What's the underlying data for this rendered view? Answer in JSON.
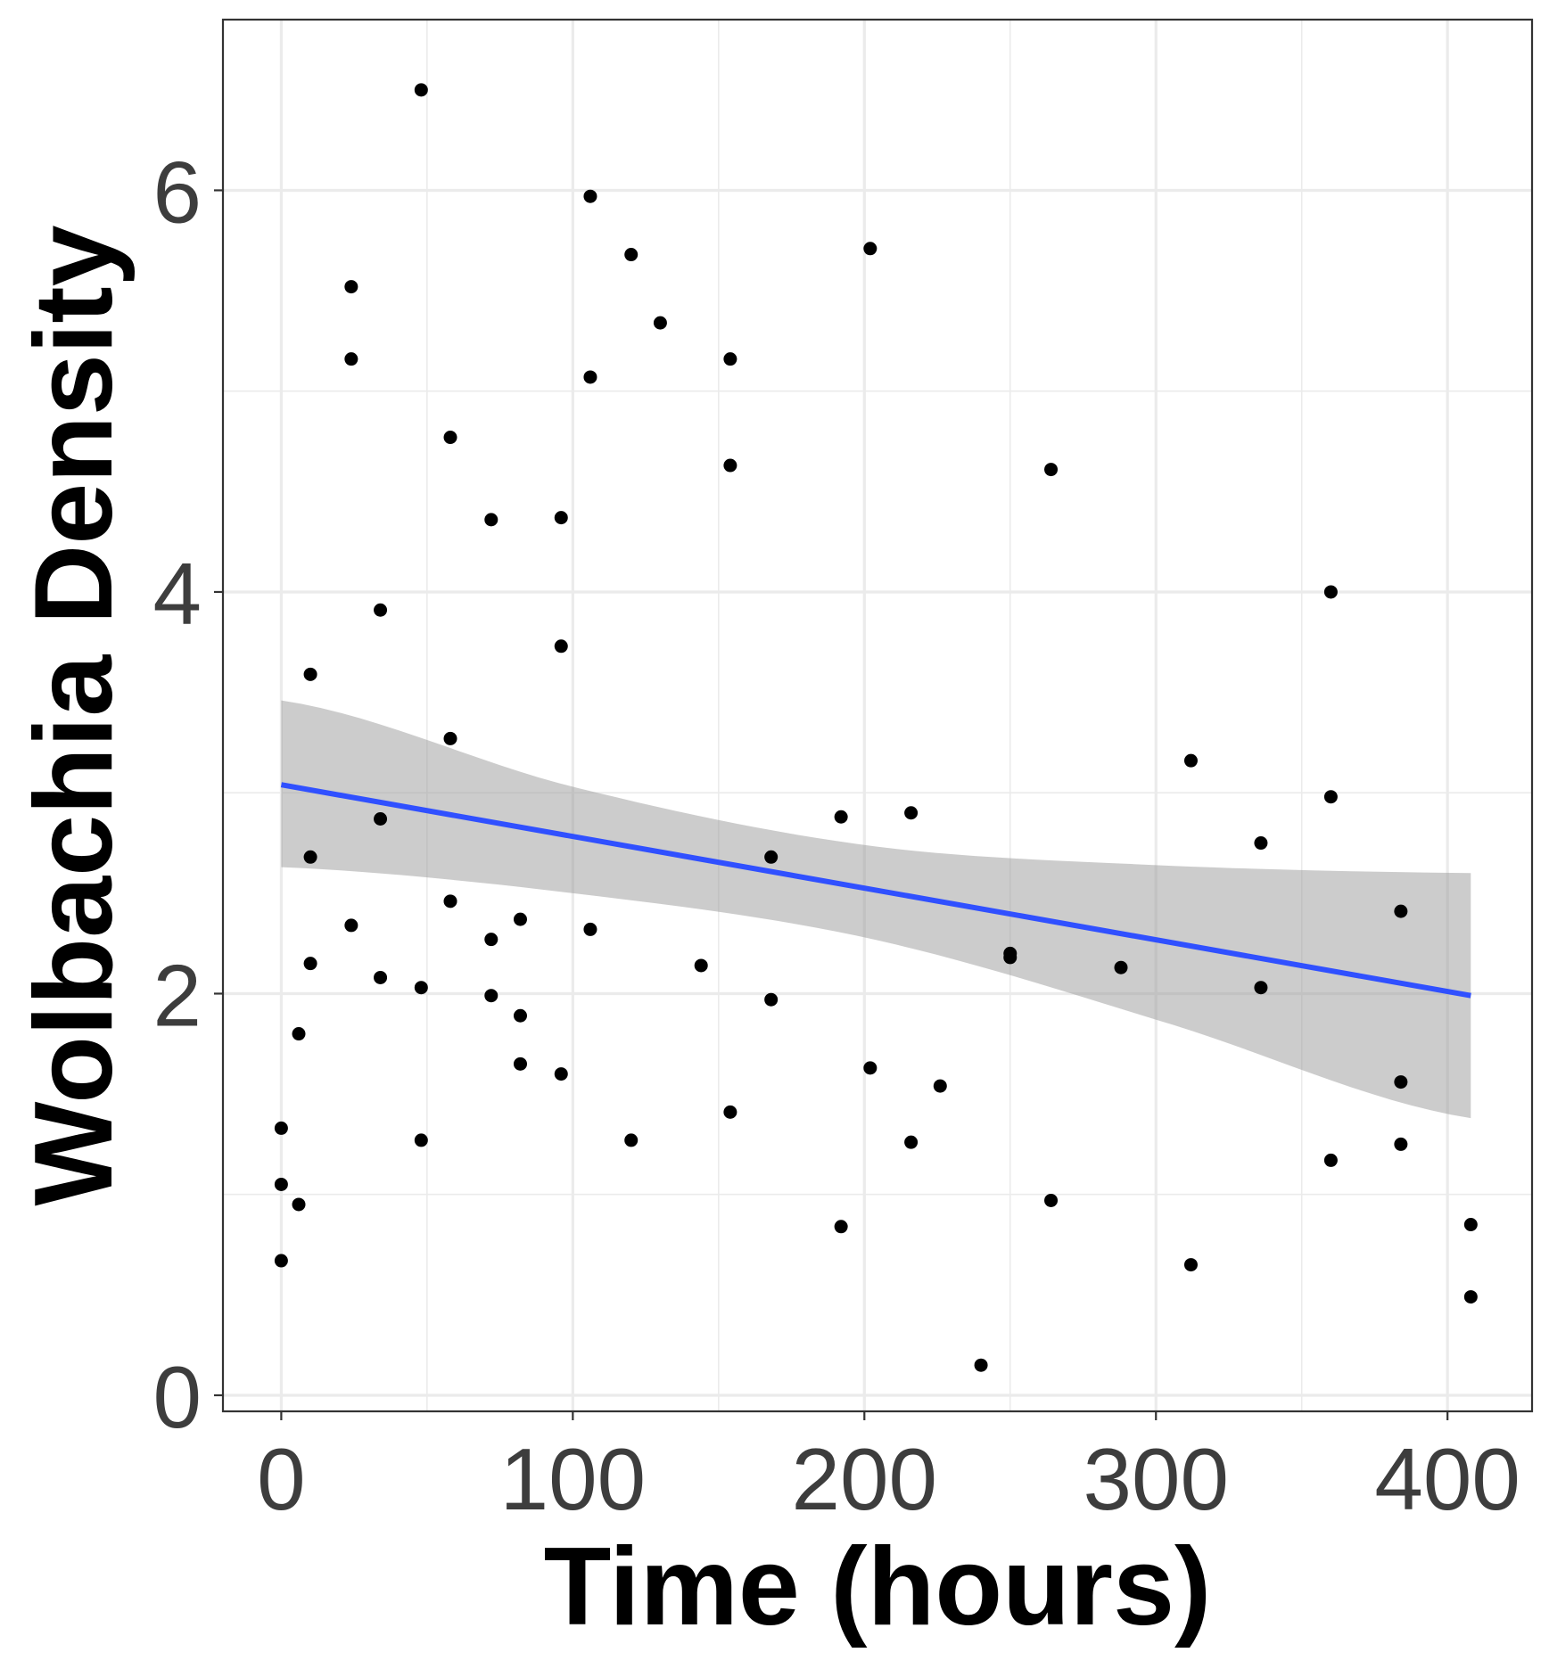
{
  "chart_data": {
    "type": "scatter",
    "title": "",
    "xlabel": "Time (hours)",
    "ylabel": "Wolbachia Density",
    "xlim": [
      -20,
      429
    ],
    "ylim": [
      -0.08,
      6.85
    ],
    "x_ticks": [
      0,
      100,
      200,
      300,
      400
    ],
    "x_tick_labels": [
      "0",
      "100",
      "200",
      "300",
      "400"
    ],
    "x_minor_ticks": [
      50,
      150,
      250,
      350
    ],
    "y_ticks": [
      0,
      2,
      4,
      6
    ],
    "y_tick_labels": [
      "0",
      "2",
      "4",
      "6"
    ],
    "y_minor_ticks": [
      1,
      3,
      5
    ],
    "grid": true,
    "legend": "none",
    "colors": {
      "points": "#000000",
      "fit_line": "#3050ff",
      "confidence_band": "#999999",
      "grid": "#ebebeb",
      "panel_border": "#333333"
    },
    "points": [
      {
        "x": 0,
        "y": 1.33
      },
      {
        "x": 0,
        "y": 1.05
      },
      {
        "x": 0,
        "y": 0.67
      },
      {
        "x": 6,
        "y": 1.8
      },
      {
        "x": 6,
        "y": 0.95
      },
      {
        "x": 10,
        "y": 3.59
      },
      {
        "x": 10,
        "y": 2.68
      },
      {
        "x": 10,
        "y": 2.15
      },
      {
        "x": 24,
        "y": 5.52
      },
      {
        "x": 24,
        "y": 5.16
      },
      {
        "x": 24,
        "y": 2.34
      },
      {
        "x": 34,
        "y": 3.91
      },
      {
        "x": 34,
        "y": 2.87
      },
      {
        "x": 34,
        "y": 2.08
      },
      {
        "x": 48,
        "y": 6.5
      },
      {
        "x": 48,
        "y": 2.03
      },
      {
        "x": 48,
        "y": 1.27
      },
      {
        "x": 58,
        "y": 4.77
      },
      {
        "x": 58,
        "y": 3.27
      },
      {
        "x": 58,
        "y": 2.46
      },
      {
        "x": 72,
        "y": 4.36
      },
      {
        "x": 72,
        "y": 2.27
      },
      {
        "x": 72,
        "y": 1.99
      },
      {
        "x": 82,
        "y": 2.37
      },
      {
        "x": 82,
        "y": 1.89
      },
      {
        "x": 82,
        "y": 1.65
      },
      {
        "x": 96,
        "y": 4.37
      },
      {
        "x": 96,
        "y": 3.73
      },
      {
        "x": 96,
        "y": 1.6
      },
      {
        "x": 106,
        "y": 5.97
      },
      {
        "x": 106,
        "y": 5.07
      },
      {
        "x": 106,
        "y": 2.32
      },
      {
        "x": 120,
        "y": 5.68
      },
      {
        "x": 120,
        "y": 1.27
      },
      {
        "x": 130,
        "y": 5.34
      },
      {
        "x": 144,
        "y": 2.14
      },
      {
        "x": 154,
        "y": 5.16
      },
      {
        "x": 154,
        "y": 4.63
      },
      {
        "x": 154,
        "y": 1.41
      },
      {
        "x": 168,
        "y": 2.68
      },
      {
        "x": 168,
        "y": 1.97
      },
      {
        "x": 192,
        "y": 2.88
      },
      {
        "x": 192,
        "y": 0.84
      },
      {
        "x": 202,
        "y": 5.71
      },
      {
        "x": 202,
        "y": 1.63
      },
      {
        "x": 216,
        "y": 2.9
      },
      {
        "x": 216,
        "y": 1.26
      },
      {
        "x": 226,
        "y": 1.54
      },
      {
        "x": 240,
        "y": 0.15
      },
      {
        "x": 250,
        "y": 2.2
      },
      {
        "x": 250,
        "y": 2.18
      },
      {
        "x": 264,
        "y": 4.61
      },
      {
        "x": 264,
        "y": 0.97
      },
      {
        "x": 288,
        "y": 2.13
      },
      {
        "x": 312,
        "y": 3.16
      },
      {
        "x": 312,
        "y": 0.65
      },
      {
        "x": 336,
        "y": 2.75
      },
      {
        "x": 336,
        "y": 2.03
      },
      {
        "x": 360,
        "y": 4.0
      },
      {
        "x": 360,
        "y": 2.98
      },
      {
        "x": 360,
        "y": 1.17
      },
      {
        "x": 384,
        "y": 2.41
      },
      {
        "x": 384,
        "y": 1.56
      },
      {
        "x": 384,
        "y": 1.25
      },
      {
        "x": 408,
        "y": 0.85
      },
      {
        "x": 408,
        "y": 0.49
      }
    ],
    "fit_line": {
      "x": [
        0,
        408
      ],
      "y": [
        3.04,
        1.99
      ]
    },
    "confidence_band": {
      "x": [
        0,
        100,
        200,
        300,
        408
      ],
      "upper": [
        3.46,
        3.03,
        2.74,
        2.64,
        2.6
      ],
      "lower": [
        2.63,
        2.5,
        2.28,
        1.87,
        1.38
      ]
    }
  }
}
